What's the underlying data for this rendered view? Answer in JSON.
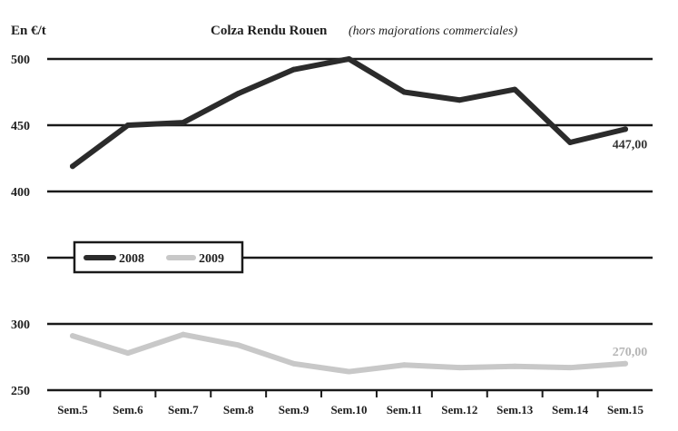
{
  "chart_data": {
    "type": "line",
    "title": "Colza Rendu Rouen",
    "subtitle": "(hors majorations commerciales)",
    "ylabel": "En €/t",
    "xlabel": "",
    "categories": [
      "Sem.5",
      "Sem.6",
      "Sem.7",
      "Sem.8",
      "Sem.9",
      "Sem.10",
      "Sem.11",
      "Sem.12",
      "Sem.13",
      "Sem.14",
      "Sem.15"
    ],
    "ylim": [
      250,
      500
    ],
    "yticks": [
      "500",
      "450",
      "400",
      "350",
      "300",
      "250"
    ],
    "grid": true,
    "legend_position": "middle-left",
    "series": [
      {
        "name": "2008",
        "color": "#2b2b2b",
        "values": [
          419,
          450,
          452,
          474,
          492,
          500,
          475,
          469,
          477,
          437,
          447
        ],
        "end_label": "447,00",
        "end_label_color": "#333333"
      },
      {
        "name": "2009",
        "color": "#c8c8c8",
        "values": [
          291,
          278,
          292,
          284,
          270,
          264,
          269,
          267,
          268,
          267,
          270
        ],
        "end_label": "270,00",
        "end_label_color": "#b5b5b5"
      }
    ]
  }
}
